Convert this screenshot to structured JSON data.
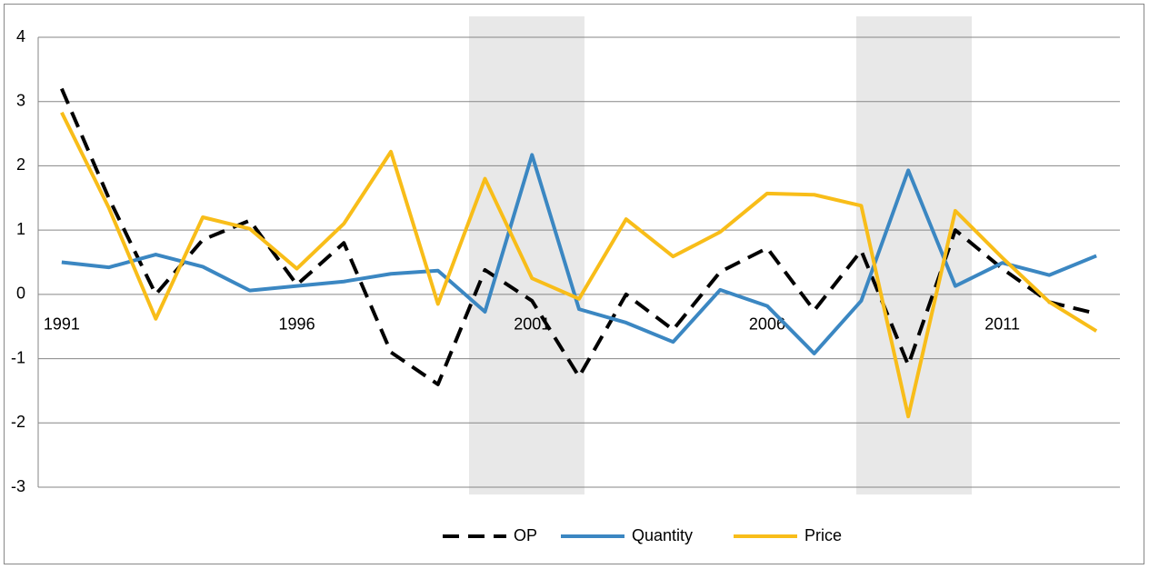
{
  "chart_data": {
    "type": "line",
    "categories": [
      "1991",
      null,
      null,
      null,
      null,
      "1996",
      null,
      null,
      null,
      null,
      "2001",
      null,
      null,
      null,
      null,
      "2006",
      null,
      null,
      null,
      null,
      "2011",
      null,
      null
    ],
    "series": [
      {
        "name": "OP",
        "color": "#000000",
        "dash": true,
        "values": [
          3.2,
          1.5,
          0.0,
          0.85,
          1.15,
          0.15,
          0.8,
          -0.9,
          -1.4,
          0.38,
          -0.1,
          -1.28,
          0.0,
          -0.55,
          0.35,
          0.72,
          -0.25,
          0.68,
          -1.1,
          1.0,
          0.4,
          -0.12,
          -0.3
        ]
      },
      {
        "name": "Quantity",
        "color": "#3b87c2",
        "dash": false,
        "values": [
          0.5,
          0.42,
          0.62,
          0.43,
          0.06,
          0.13,
          0.2,
          0.32,
          0.37,
          -0.27,
          2.17,
          -0.23,
          -0.44,
          -0.74,
          0.07,
          -0.18,
          -0.92,
          -0.1,
          1.93,
          0.13,
          0.49,
          0.3,
          0.6
        ]
      },
      {
        "name": "Price",
        "color": "#f8bd19",
        "dash": false,
        "values": [
          2.83,
          1.35,
          -0.38,
          1.2,
          1.02,
          0.4,
          1.1,
          2.22,
          -0.15,
          1.8,
          0.25,
          -0.07,
          1.17,
          0.59,
          0.97,
          1.57,
          1.55,
          1.38,
          -1.9,
          1.3,
          0.57,
          -0.12,
          -0.57
        ]
      }
    ],
    "ylim": [
      -3,
      4
    ],
    "yticks": [
      -3,
      -2,
      -1,
      0,
      1,
      2,
      3,
      4
    ],
    "grid": true,
    "legend": "bottom"
  }
}
